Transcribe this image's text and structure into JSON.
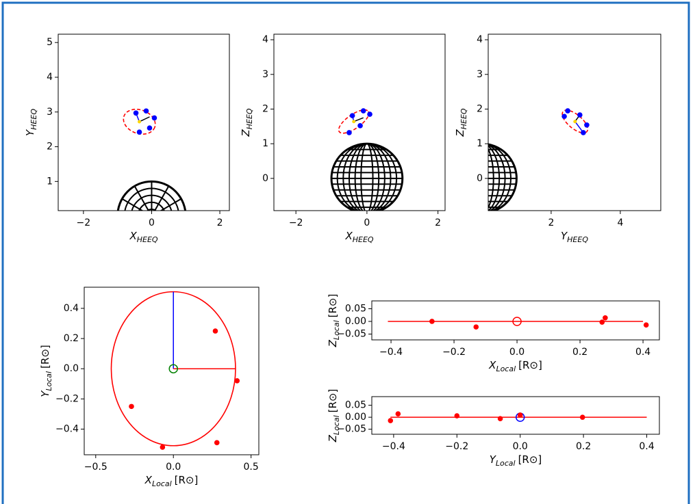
{
  "chart_data": [
    {
      "type": "scatter",
      "xlabel": {
        "symbol": "X",
        "subscript": "HEEQ"
      },
      "ylabel": {
        "symbol": "Y",
        "subscript": "HEEQ"
      },
      "xlim": [
        -2.74,
        2.28
      ],
      "ylim": [
        0.16,
        5.24
      ],
      "xticks": [
        {
          "value": -2,
          "label": "−2"
        },
        0,
        2
      ],
      "yticks": [
        1,
        2,
        3,
        4,
        5
      ],
      "sun": {
        "cx": 0,
        "cy": 0,
        "r": 1,
        "view": "polar"
      },
      "ellipse": {
        "cx": -0.36,
        "cy": 2.72,
        "rx": 0.48,
        "ry": 0.34,
        "angle": -20,
        "color": "#ff0000",
        "style": "dashed"
      },
      "lines": [
        {
          "x": [
            -0.36,
            -0.46
          ],
          "y": [
            2.72,
            2.97
          ],
          "color": "#0000ff"
        },
        {
          "x": [
            -0.36,
            -0.06
          ],
          "y": [
            2.72,
            2.86
          ],
          "color": "#000000"
        }
      ],
      "points": {
        "x": [
          -0.46,
          -0.16,
          0.08,
          -0.06,
          -0.36
        ],
        "y": [
          2.97,
          3.03,
          2.83,
          2.54,
          2.42
        ],
        "color": "#0000ff"
      },
      "center": {
        "x": -0.36,
        "y": 2.72,
        "color": "#ffd700"
      }
    },
    {
      "type": "scatter",
      "xlabel": {
        "symbol": "X",
        "subscript": "HEEQ"
      },
      "ylabel": {
        "symbol": "Z",
        "subscript": "HEEQ"
      },
      "xlim": [
        -2.62,
        2.2
      ],
      "ylim": [
        -0.93,
        4.16
      ],
      "xticks": [
        {
          "value": -2,
          "label": "−2"
        },
        0,
        2
      ],
      "yticks": [
        0,
        1,
        2,
        3,
        4
      ],
      "sun": {
        "cx": 0,
        "cy": 0,
        "r": 1,
        "view": "globe"
      },
      "ellipse": {
        "cx": -0.37,
        "cy": 1.64,
        "rx": 0.5,
        "ry": 0.2,
        "angle": 35,
        "color": "#ff0000",
        "style": "dashed"
      },
      "lines": [
        {
          "x": [
            -0.37,
            -0.41
          ],
          "y": [
            1.64,
            1.81
          ],
          "color": "#0000ff"
        },
        {
          "x": [
            -0.37,
            -0.1
          ],
          "y": [
            1.64,
            1.75
          ],
          "color": "#000000"
        }
      ],
      "points": {
        "x": [
          -0.41,
          -0.1,
          0.08,
          -0.19,
          -0.5
        ],
        "y": [
          1.81,
          1.95,
          1.85,
          1.52,
          1.32
        ],
        "color": "#0000ff"
      },
      "center": {
        "x": -0.37,
        "y": 1.64,
        "color": "#ffd700"
      }
    },
    {
      "type": "scatter",
      "xlabel": {
        "symbol": "Y",
        "subscript": "HEEQ"
      },
      "ylabel": {
        "symbol": "Z",
        "subscript": "HEEQ"
      },
      "xlim": [
        0.18,
        5.17
      ],
      "ylim": [
        -0.93,
        4.16
      ],
      "xticks": [
        2,
        4
      ],
      "yticks": [
        0,
        1,
        2,
        3,
        4
      ],
      "sun": {
        "cx": 0,
        "cy": 0,
        "r": 1,
        "view": "globe"
      },
      "ellipse": {
        "cx": 2.69,
        "cy": 1.64,
        "rx": 0.45,
        "ry": 0.2,
        "angle": -40,
        "color": "#ff0000",
        "style": "dashed"
      },
      "lines": [
        {
          "x": [
            2.69,
            2.93
          ],
          "y": [
            1.64,
            1.32
          ],
          "color": "#0000ff"
        },
        {
          "x": [
            2.69,
            2.83
          ],
          "y": [
            1.64,
            1.83
          ],
          "color": "#000000"
        }
      ],
      "points": {
        "x": [
          2.48,
          2.83,
          3.03,
          2.93,
          2.38
        ],
        "y": [
          1.95,
          1.83,
          1.54,
          1.32,
          1.79
        ],
        "color": "#0000ff"
      },
      "center": {
        "x": 2.69,
        "y": 1.64,
        "color": "#ffd700"
      }
    },
    {
      "type": "scatter",
      "xlabel": {
        "symbol": "X",
        "subscript": "Local",
        "unit": "[R⊙]"
      },
      "ylabel": {
        "symbol": "Y",
        "subscript": "Local",
        "unit": "[R⊙]"
      },
      "xlim": [
        -0.574,
        0.55
      ],
      "ylim": [
        -0.57,
        0.54
      ],
      "xticks": [
        {
          "value": -0.5,
          "label": "−0.5"
        },
        {
          "value": 0,
          "label": "0.0"
        },
        0.5
      ],
      "yticks": [
        {
          "value": -0.4,
          "label": "−0.4"
        },
        {
          "value": -0.2,
          "label": "−0.2"
        },
        {
          "value": 0,
          "label": "0.0"
        },
        0.2,
        0.4
      ],
      "ellipse": {
        "cx": 0,
        "cy": 0,
        "rx": 0.4,
        "ry": 0.51,
        "angle": 0,
        "color": "#ff0000",
        "style": "solid"
      },
      "lines": [
        {
          "x": [
            0,
            0
          ],
          "y": [
            0,
            0.51
          ],
          "color": "#0000ff"
        },
        {
          "x": [
            0,
            0.4
          ],
          "y": [
            0,
            0
          ],
          "color": "#ff0000"
        }
      ],
      "points": {
        "x": [
          0.27,
          0.41,
          0.28,
          -0.07,
          -0.27
        ],
        "y": [
          0.25,
          -0.08,
          -0.49,
          -0.52,
          -0.25
        ],
        "color": "#ff0000"
      },
      "origin_marker": {
        "x": 0,
        "y": 0,
        "color": "#008000"
      }
    },
    {
      "type": "scatter",
      "xlabel": {
        "symbol": "X",
        "subscript": "Local",
        "unit": "[R⊙]"
      },
      "ylabel": {
        "symbol": "Z",
        "subscript": "Local",
        "unit": "[R⊙]"
      },
      "xlim": [
        -0.461,
        0.452
      ],
      "ylim": [
        -0.073,
        0.081
      ],
      "xticks": [
        {
          "value": -0.4,
          "label": "−0.4"
        },
        {
          "value": -0.2,
          "label": "−0.2"
        },
        {
          "value": 0,
          "label": "0.0"
        },
        0.2,
        0.4
      ],
      "yticks": [
        {
          "value": -0.05,
          "label": "−0.05"
        },
        {
          "value": 0,
          "label": "0.00"
        },
        0.05
      ],
      "lines": [
        {
          "x": [
            -0.41,
            0.4
          ],
          "y": [
            0,
            0
          ],
          "color": "#ff0000"
        }
      ],
      "points": {
        "x": [
          -0.27,
          -0.13,
          0.27,
          0.28,
          0.41
        ],
        "y": [
          0.0,
          -0.022,
          -0.003,
          0.014,
          -0.014
        ],
        "color": "#ff0000"
      },
      "origin_marker": {
        "x": 0,
        "y": 0,
        "color": "#ff0000"
      }
    },
    {
      "type": "scatter",
      "xlabel": {
        "symbol": "Y",
        "subscript": "Local",
        "unit": "[R⊙]"
      },
      "ylabel": {
        "symbol": "Z",
        "subscript": "Local",
        "unit": "[R⊙]"
      },
      "xlim": [
        -0.469,
        0.44
      ],
      "ylim": [
        -0.071,
        0.086
      ],
      "xticks": [
        {
          "value": -0.4,
          "label": "−0.4"
        },
        {
          "value": -0.2,
          "label": "−0.2"
        },
        {
          "value": 0,
          "label": "0.0"
        },
        0.2,
        0.4
      ],
      "yticks": [
        {
          "value": -0.05,
          "label": "−0.05"
        },
        {
          "value": 0,
          "label": "0.00"
        },
        0.05
      ],
      "lines": [
        {
          "x": [
            -0.41,
            0.4
          ],
          "y": [
            0,
            0
          ],
          "color": "#ff0000"
        }
      ],
      "points": {
        "x": [
          -0.41,
          -0.386,
          -0.2,
          -0.063,
          0,
          0.197
        ],
        "y": [
          -0.014,
          0.014,
          0.006,
          -0.006,
          0.009,
          0
        ],
        "color": "#ff0000"
      },
      "origin_marker": {
        "x": 0,
        "y": 0,
        "color": "#0000ff"
      }
    }
  ]
}
